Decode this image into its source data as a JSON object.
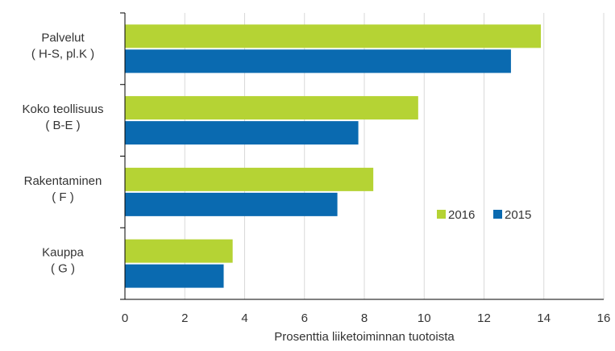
{
  "chart_data": {
    "type": "bar",
    "orientation": "horizontal",
    "categories": [
      [
        "Palvelut",
        "( H-S, pl.K )"
      ],
      [
        "Koko teollisuus",
        "( B-E )"
      ],
      [
        "Rakentaminen",
        "( F )"
      ],
      [
        "Kauppa",
        "( G )"
      ]
    ],
    "series": [
      {
        "name": "2016",
        "color": "#b5d334",
        "values": [
          13.9,
          9.8,
          8.3,
          3.6
        ]
      },
      {
        "name": "2015",
        "color": "#0a6ab0",
        "values": [
          12.9,
          7.8,
          7.1,
          3.3
        ]
      }
    ],
    "xlabel": "Prosenttia liiketoiminnan tuotoista",
    "xlim": [
      0,
      16
    ],
    "xticks": [
      0,
      2,
      4,
      6,
      8,
      10,
      12,
      14,
      16
    ],
    "grid": true,
    "legend": "right"
  }
}
